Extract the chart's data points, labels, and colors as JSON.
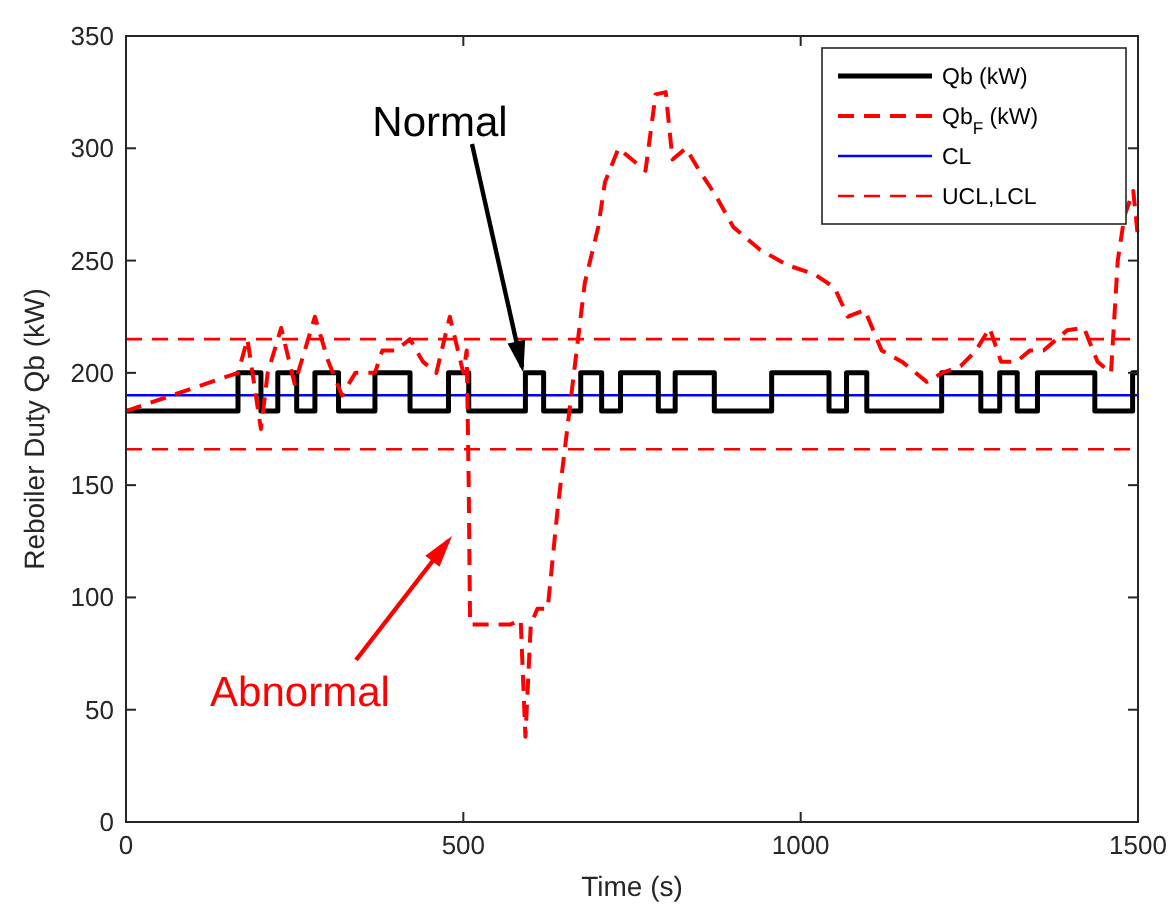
{
  "chart_data": {
    "type": "line",
    "xlabel": "Time (s)",
    "ylabel": "Reboiler Duty Qb (kW)",
    "xlim": [
      0,
      1500
    ],
    "xticks": [
      0,
      500,
      1000,
      1500
    ],
    "ylim": [
      0,
      350
    ],
    "yticks": [
      0,
      50,
      100,
      150,
      200,
      250,
      300,
      350
    ],
    "grid": false,
    "legend": "top right",
    "marker": "none",
    "series": [
      {
        "name": "Qb (kW)",
        "type": "step",
        "color": "#000000",
        "line_style": "solid",
        "x": [
          0,
          166,
          200,
          225,
          253,
          280,
          315,
          369,
          421,
          478,
          508,
          592,
          619,
          674,
          705,
          733,
          789,
          814,
          872,
          957,
          1042,
          1068,
          1098,
          1209,
          1267,
          1295,
          1321,
          1351,
          1436,
          1492,
          1500
        ],
        "values": [
          183,
          200,
          183,
          200,
          183,
          200,
          183,
          200,
          183,
          200,
          183,
          200,
          183,
          200,
          183,
          200,
          183,
          200,
          183,
          200,
          183,
          200,
          183,
          200,
          183,
          200,
          183,
          200,
          183,
          200,
          200
        ]
      },
      {
        "name": "Qb$_{F}$ (kW)",
        "type": "line",
        "color": "#ff0000",
        "line_style": "dashed",
        "x": [
          0,
          166,
          180,
          200,
          210,
          230,
          250,
          265,
          280,
          300,
          320,
          340,
          369,
          380,
          400,
          421,
          440,
          460,
          480,
          500,
          505,
          508,
          510,
          540,
          570,
          585,
          592,
          600,
          610,
          625,
          640,
          660,
          680,
          700,
          710,
          730,
          750,
          770,
          785,
          800,
          810,
          830,
          850,
          874,
          900,
          939,
          980,
          1020,
          1050,
          1070,
          1095,
          1120,
          1150,
          1187,
          1210,
          1237,
          1260,
          1280,
          1297,
          1320,
          1340,
          1360,
          1395,
          1420,
          1440,
          1460,
          1470,
          1480,
          1493,
          1500
        ],
        "values": [
          183,
          200,
          215,
          175,
          200,
          220,
          195,
          210,
          225,
          205,
          190,
          200,
          200,
          210,
          210,
          215,
          205,
          200,
          225,
          200,
          210,
          150,
          88,
          88,
          88,
          90,
          38,
          88,
          95,
          95,
          140,
          190,
          240,
          265,
          285,
          300,
          295,
          290,
          324,
          325,
          295,
          300,
          290,
          279,
          265,
          255,
          248,
          244,
          238,
          225,
          228,
          210,
          205,
          196,
          200,
          203,
          210,
          220,
          205,
          205,
          210,
          210,
          219,
          220,
          205,
          200,
          250,
          270,
          281,
          260
        ]
      }
    ],
    "ref_lines": [
      {
        "axis": "y",
        "value": 190,
        "label": "CL",
        "color": "#0000ff",
        "line_style": "solid"
      },
      {
        "axis": "y",
        "value": 215,
        "label": "UCL,LCL",
        "color": "#ff0000",
        "line_style": "dashed"
      },
      {
        "axis": "y",
        "value": 166,
        "label": null,
        "color": "#ff0000",
        "line_style": "dashed"
      }
    ],
    "annotations": [
      {
        "text": "Normal",
        "x": 589,
        "y": 200
      },
      "Abnormal"
    ]
  }
}
